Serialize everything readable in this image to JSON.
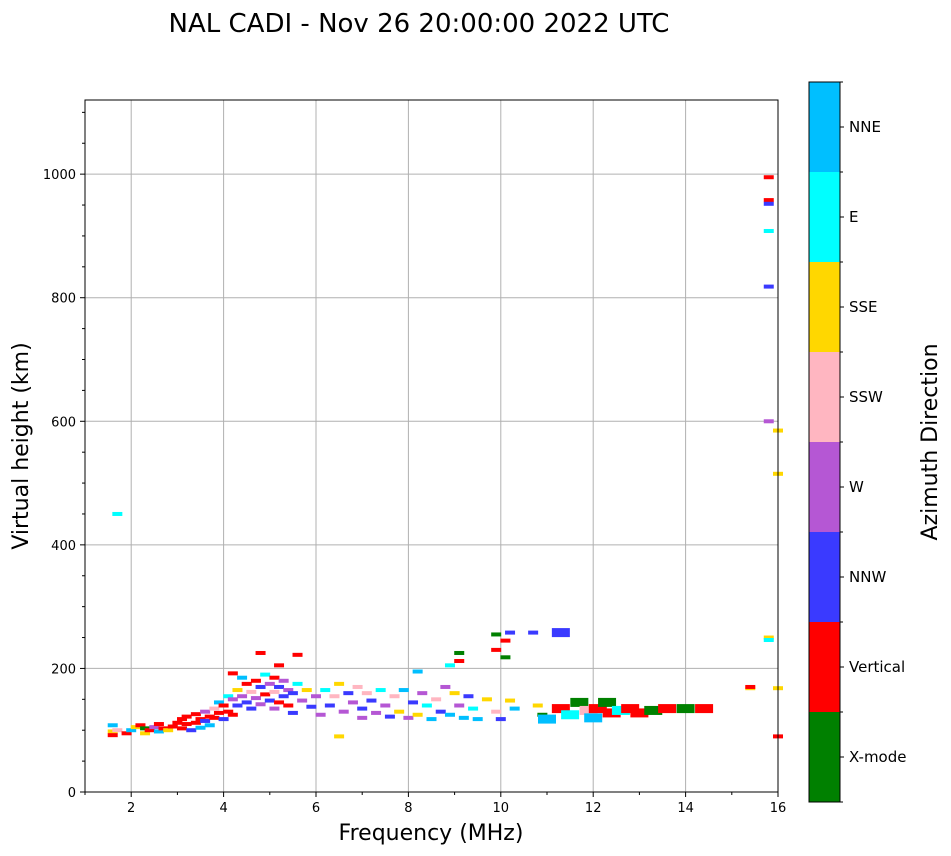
{
  "chart_data": {
    "type": "scatter",
    "title": "NAL CADI - Nov 26 20:00:00 2022 UTC",
    "xlabel": "Frequency (MHz)",
    "ylabel": "Virtual height (km)",
    "xlim": [
      1,
      16
    ],
    "ylim": [
      0,
      1120
    ],
    "xticks": [
      2,
      4,
      6,
      8,
      10,
      12,
      14,
      16
    ],
    "yticks": [
      0,
      200,
      400,
      600,
      800,
      1000
    ],
    "grid": true,
    "colorbar": {
      "label": "Azimuth Direction",
      "categories": [
        {
          "name": "X-mode",
          "color": "#008000"
        },
        {
          "name": "Vertical",
          "color": "#ff0000"
        },
        {
          "name": "NNW",
          "color": "#3a3aff"
        },
        {
          "name": "W",
          "color": "#b557d4"
        },
        {
          "name": "SSW",
          "color": "#ffb6c1"
        },
        {
          "name": "SSE",
          "color": "#ffd700"
        },
        {
          "name": "E",
          "color": "#00ffff"
        },
        {
          "name": "NNE",
          "color": "#00bfff"
        }
      ]
    },
    "points": [
      [
        1.7,
        450,
        "E"
      ],
      [
        1.6,
        108,
        "NNE"
      ],
      [
        1.6,
        98,
        "SSE"
      ],
      [
        1.6,
        92,
        "Vertical"
      ],
      [
        1.7,
        100,
        "SSW"
      ],
      [
        1.9,
        95,
        "Vertical"
      ],
      [
        2.0,
        100,
        "NNE"
      ],
      [
        2.1,
        105,
        "SSE"
      ],
      [
        2.2,
        108,
        "Vertical"
      ],
      [
        2.3,
        103,
        "X-mode"
      ],
      [
        2.3,
        95,
        "SSE"
      ],
      [
        2.4,
        100,
        "Vertical"
      ],
      [
        2.5,
        105,
        "W"
      ],
      [
        2.6,
        110,
        "Vertical"
      ],
      [
        2.6,
        98,
        "NNE"
      ],
      [
        2.7,
        103,
        "Vertical"
      ],
      [
        2.8,
        100,
        "SSE"
      ],
      [
        2.9,
        106,
        "Vertical"
      ],
      [
        3.0,
        112,
        "Vertical"
      ],
      [
        3.1,
        118,
        "Vertical"
      ],
      [
        3.1,
        103,
        "Vertical"
      ],
      [
        3.2,
        122,
        "Vertical"
      ],
      [
        3.2,
        110,
        "Vertical"
      ],
      [
        3.3,
        100,
        "NNW"
      ],
      [
        3.4,
        126,
        "Vertical"
      ],
      [
        3.4,
        112,
        "Vertical"
      ],
      [
        3.5,
        118,
        "Vertical"
      ],
      [
        3.5,
        104,
        "NNE"
      ],
      [
        3.6,
        130,
        "W"
      ],
      [
        3.6,
        115,
        "NNW"
      ],
      [
        3.7,
        122,
        "Vertical"
      ],
      [
        3.7,
        108,
        "NNE"
      ],
      [
        3.8,
        135,
        "SSW"
      ],
      [
        3.8,
        120,
        "Vertical"
      ],
      [
        3.9,
        128,
        "Vertical"
      ],
      [
        3.9,
        145,
        "NNE"
      ],
      [
        4.0,
        140,
        "Vertical"
      ],
      [
        4.0,
        118,
        "NNW"
      ],
      [
        4.1,
        155,
        "E"
      ],
      [
        4.1,
        130,
        "Vertical"
      ],
      [
        4.2,
        150,
        "W"
      ],
      [
        4.2,
        125,
        "Vertical"
      ],
      [
        4.2,
        192,
        "Vertical"
      ],
      [
        4.3,
        165,
        "SSE"
      ],
      [
        4.3,
        140,
        "NNW"
      ],
      [
        4.4,
        185,
        "NNE"
      ],
      [
        4.4,
        155,
        "W"
      ],
      [
        4.5,
        175,
        "Vertical"
      ],
      [
        4.5,
        145,
        "NNW"
      ],
      [
        4.6,
        162,
        "SSW"
      ],
      [
        4.6,
        135,
        "NNW"
      ],
      [
        4.7,
        180,
        "Vertical"
      ],
      [
        4.7,
        152,
        "W"
      ],
      [
        4.8,
        225,
        "Vertical"
      ],
      [
        4.8,
        170,
        "NNW"
      ],
      [
        4.8,
        142,
        "W"
      ],
      [
        4.9,
        190,
        "E"
      ],
      [
        4.9,
        158,
        "Vertical"
      ],
      [
        5.0,
        175,
        "W"
      ],
      [
        5.0,
        148,
        "NNW"
      ],
      [
        5.1,
        185,
        "Vertical"
      ],
      [
        5.1,
        162,
        "SSW"
      ],
      [
        5.1,
        135,
        "W"
      ],
      [
        5.2,
        205,
        "Vertical"
      ],
      [
        5.2,
        170,
        "NNW"
      ],
      [
        5.2,
        145,
        "Vertical"
      ],
      [
        5.3,
        180,
        "W"
      ],
      [
        5.3,
        155,
        "NNW"
      ],
      [
        5.4,
        165,
        "W"
      ],
      [
        5.4,
        140,
        "Vertical"
      ],
      [
        5.5,
        160,
        "NNW"
      ],
      [
        5.5,
        128,
        "NNW"
      ],
      [
        5.6,
        222,
        "Vertical"
      ],
      [
        5.6,
        175,
        "E"
      ],
      [
        5.7,
        148,
        "W"
      ],
      [
        5.8,
        165,
        "SSE"
      ],
      [
        5.9,
        138,
        "NNW"
      ],
      [
        6.0,
        155,
        "W"
      ],
      [
        6.1,
        125,
        "W"
      ],
      [
        6.2,
        165,
        "E"
      ],
      [
        6.3,
        140,
        "NNW"
      ],
      [
        6.4,
        155,
        "SSW"
      ],
      [
        6.5,
        175,
        "SSE"
      ],
      [
        6.5,
        90,
        "SSE"
      ],
      [
        6.6,
        130,
        "W"
      ],
      [
        6.7,
        160,
        "NNW"
      ],
      [
        6.8,
        145,
        "W"
      ],
      [
        6.9,
        170,
        "SSW"
      ],
      [
        7.0,
        135,
        "NNW"
      ],
      [
        7.0,
        120,
        "W"
      ],
      [
        7.1,
        160,
        "SSW"
      ],
      [
        7.2,
        148,
        "NNW"
      ],
      [
        7.3,
        128,
        "W"
      ],
      [
        7.4,
        165,
        "E"
      ],
      [
        7.5,
        140,
        "W"
      ],
      [
        7.6,
        122,
        "NNW"
      ],
      [
        7.7,
        155,
        "SSW"
      ],
      [
        7.8,
        130,
        "SSE"
      ],
      [
        7.9,
        165,
        "NNE"
      ],
      [
        8.0,
        120,
        "W"
      ],
      [
        8.1,
        145,
        "NNW"
      ],
      [
        8.2,
        195,
        "NNE"
      ],
      [
        8.2,
        125,
        "SSE"
      ],
      [
        8.3,
        160,
        "W"
      ],
      [
        8.4,
        140,
        "E"
      ],
      [
        8.5,
        118,
        "NNE"
      ],
      [
        8.6,
        150,
        "SSW"
      ],
      [
        8.7,
        130,
        "NNW"
      ],
      [
        8.8,
        170,
        "W"
      ],
      [
        8.9,
        125,
        "NNE"
      ],
      [
        8.9,
        205,
        "E"
      ],
      [
        9.0,
        160,
        "SSE"
      ],
      [
        9.1,
        140,
        "W"
      ],
      [
        9.1,
        225,
        "X-mode"
      ],
      [
        9.1,
        212,
        "Vertical"
      ],
      [
        9.2,
        120,
        "NNE"
      ],
      [
        9.3,
        155,
        "NNW"
      ],
      [
        9.4,
        135,
        "E"
      ],
      [
        9.5,
        118,
        "NNE"
      ],
      [
        9.7,
        150,
        "SSE"
      ],
      [
        9.9,
        130,
        "SSW"
      ],
      [
        9.9,
        255,
        "X-mode"
      ],
      [
        9.9,
        230,
        "Vertical"
      ],
      [
        10.0,
        118,
        "NNW"
      ],
      [
        10.1,
        245,
        "Vertical"
      ],
      [
        10.1,
        218,
        "X-mode"
      ],
      [
        10.2,
        258,
        "NNW"
      ],
      [
        10.2,
        148,
        "SSE"
      ],
      [
        10.3,
        135,
        "NNE"
      ],
      [
        10.7,
        258,
        "NNW"
      ],
      [
        10.8,
        140,
        "SSE"
      ],
      [
        10.9,
        125,
        "X-mode"
      ],
      [
        11.0,
        118,
        "NNE"
      ],
      [
        11.3,
        258,
        "NNW"
      ],
      [
        11.3,
        135,
        "Vertical"
      ],
      [
        11.5,
        125,
        "E"
      ],
      [
        11.7,
        145,
        "X-mode"
      ],
      [
        11.9,
        132,
        "SSW"
      ],
      [
        12.0,
        120,
        "NNE"
      ],
      [
        12.1,
        135,
        "Vertical"
      ],
      [
        12.3,
        145,
        "X-mode"
      ],
      [
        12.4,
        128,
        "Vertical"
      ],
      [
        12.6,
        132,
        "E"
      ],
      [
        12.8,
        135,
        "Vertical"
      ],
      [
        13.0,
        128,
        "Vertical"
      ],
      [
        13.3,
        132,
        "X-mode"
      ],
      [
        13.6,
        135,
        "Vertical"
      ],
      [
        14.0,
        135,
        "X-mode"
      ],
      [
        14.4,
        135,
        "Vertical"
      ],
      [
        15.4,
        168,
        "SSE"
      ],
      [
        15.4,
        170,
        "Vertical"
      ],
      [
        15.8,
        995,
        "Vertical"
      ],
      [
        15.8,
        958,
        "Vertical"
      ],
      [
        15.8,
        952,
        "NNW"
      ],
      [
        15.8,
        908,
        "E"
      ],
      [
        15.8,
        818,
        "NNW"
      ],
      [
        15.8,
        600,
        "W"
      ],
      [
        15.8,
        250,
        "SSE"
      ],
      [
        15.8,
        246,
        "E"
      ],
      [
        16.0,
        585,
        "SSE"
      ],
      [
        16.0,
        515,
        "SSE"
      ],
      [
        16.0,
        168,
        "SSE"
      ],
      [
        16.0,
        90,
        "Vertical"
      ]
    ]
  }
}
